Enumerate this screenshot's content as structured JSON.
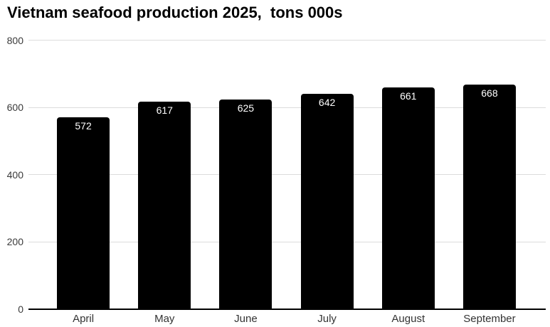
{
  "chart_data": {
    "type": "bar",
    "title": "Vietnam seafood production 2025,  tons 000s",
    "categories": [
      "April",
      "May",
      "June",
      "July",
      "August",
      "September"
    ],
    "values": [
      572,
      617,
      625,
      642,
      661,
      668
    ],
    "xlabel": "",
    "ylabel": "",
    "ylim": [
      0,
      800
    ],
    "yticks": [
      0,
      200,
      400,
      600,
      800
    ],
    "grid": true,
    "legend": false,
    "bar_labels_inside": true,
    "colors": {
      "bar": "#000000",
      "bar_label": "#ffffff",
      "gridline": "#dcdcdc",
      "axis_line": "#000000",
      "tick_label": "#3a3a3a",
      "category_label": "#333333",
      "title": "#000000",
      "background": "#ffffff"
    }
  }
}
